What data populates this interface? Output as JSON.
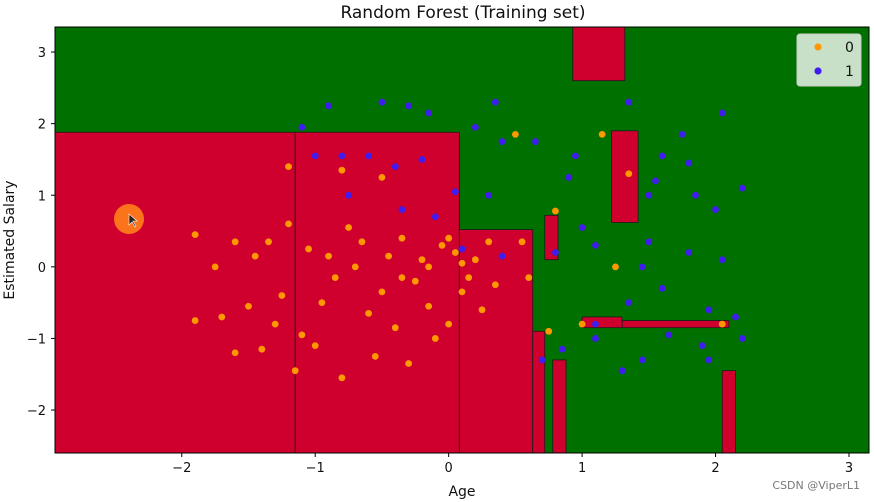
{
  "colors": {
    "region_0": "#d0002e",
    "region_1": "#007100",
    "point_0": "#ff9800",
    "point_1": "#3f1cf0",
    "cursor": "#ff7f1a"
  },
  "chart_data": {
    "type": "scatter",
    "title": "Random Forest (Training set)",
    "xlabel": "Age",
    "ylabel": "Estimated Salary",
    "xlim": [
      -2.95,
      3.15
    ],
    "ylim": [
      -2.6,
      3.35
    ],
    "xticks": [
      "−2",
      "−1",
      "0",
      "1",
      "2",
      "3"
    ],
    "xtick_values": [
      -2,
      -1,
      0,
      1,
      2,
      3
    ],
    "yticks": [
      "−2",
      "−1",
      "0",
      "1",
      "2",
      "3"
    ],
    "ytick_values": [
      -2,
      -1,
      0,
      1,
      2,
      3
    ],
    "grid": false,
    "legend": {
      "placement": "top-right",
      "entries": [
        "0",
        "1"
      ]
    },
    "decision_regions": [
      {
        "class": "0",
        "x": [
          -2.95,
          -1.15
        ],
        "y": [
          -2.6,
          1.88
        ]
      },
      {
        "class": "0",
        "x": [
          -1.15,
          0.08
        ],
        "y": [
          -2.6,
          1.88
        ]
      },
      {
        "class": "0",
        "x": [
          0.08,
          0.63
        ],
        "y": [
          -2.6,
          0.52
        ]
      },
      {
        "class": "0",
        "x": [
          0.63,
          0.72
        ],
        "y": [
          -2.6,
          -0.9
        ]
      },
      {
        "class": "0",
        "x": [
          0.78,
          0.88
        ],
        "y": [
          -2.6,
          -1.3
        ]
      },
      {
        "class": "0",
        "x": [
          0.93,
          1.32
        ],
        "y": [
          2.6,
          3.35
        ]
      },
      {
        "class": "0",
        "x": [
          1.22,
          1.42
        ],
        "y": [
          0.62,
          1.9
        ]
      },
      {
        "class": "0",
        "x": [
          1.0,
          1.3
        ],
        "y": [
          -0.7,
          -0.85
        ]
      },
      {
        "class": "0",
        "x": [
          1.3,
          2.1
        ],
        "y": [
          -0.75,
          -0.85
        ]
      },
      {
        "class": "0",
        "x": [
          2.05,
          2.15
        ],
        "y": [
          -2.6,
          -1.45
        ]
      },
      {
        "class": "0",
        "x": [
          0.72,
          0.82
        ],
        "y": [
          0.1,
          0.72
        ]
      }
    ],
    "series": [
      {
        "name": "0",
        "points": [
          [
            -1.9,
            0.45
          ],
          [
            -1.9,
            -0.75
          ],
          [
            -1.75,
            0.0
          ],
          [
            -1.7,
            -0.7
          ],
          [
            -1.6,
            -1.2
          ],
          [
            -1.6,
            0.35
          ],
          [
            -1.5,
            -0.55
          ],
          [
            -1.4,
            -1.15
          ],
          [
            -1.35,
            0.35
          ],
          [
            -1.25,
            -0.4
          ],
          [
            -1.2,
            0.6
          ],
          [
            -1.15,
            -1.45
          ],
          [
            -1.1,
            -0.95
          ],
          [
            -1.05,
            0.25
          ],
          [
            -1.0,
            -1.1
          ],
          [
            -0.95,
            -0.5
          ],
          [
            -0.85,
            -0.15
          ],
          [
            -0.8,
            -1.55
          ],
          [
            -0.75,
            0.55
          ],
          [
            -0.7,
            0.0
          ],
          [
            -0.65,
            0.35
          ],
          [
            -0.6,
            -0.65
          ],
          [
            -0.55,
            -1.25
          ],
          [
            -0.5,
            -0.35
          ],
          [
            -0.45,
            0.15
          ],
          [
            -0.4,
            -0.85
          ],
          [
            -0.35,
            0.4
          ],
          [
            -0.3,
            -1.35
          ],
          [
            -0.25,
            -0.2
          ],
          [
            -0.2,
            0.1
          ],
          [
            -0.15,
            -0.55
          ],
          [
            -0.1,
            -1.0
          ],
          [
            -0.05,
            0.3
          ],
          [
            0.0,
            -0.8
          ],
          [
            0.05,
            0.2
          ],
          [
            0.1,
            -0.35
          ],
          [
            0.15,
            -0.15
          ],
          [
            0.2,
            0.1
          ],
          [
            0.25,
            -0.6
          ],
          [
            0.3,
            0.35
          ],
          [
            0.35,
            -0.25
          ],
          [
            -1.45,
            0.15
          ],
          [
            -1.3,
            -0.8
          ],
          [
            -0.9,
            0.15
          ],
          [
            -0.35,
            -0.15
          ],
          [
            -0.15,
            0.0
          ],
          [
            0.0,
            0.4
          ],
          [
            0.1,
            0.05
          ],
          [
            -0.5,
            1.25
          ],
          [
            -0.8,
            1.35
          ],
          [
            -1.2,
            1.4
          ],
          [
            0.75,
            -0.9
          ],
          [
            0.55,
            0.35
          ],
          [
            1.0,
            -0.8
          ],
          [
            1.25,
            0.0
          ],
          [
            1.35,
            1.3
          ],
          [
            2.05,
            -0.8
          ],
          [
            0.8,
            0.78
          ],
          [
            0.5,
            1.85
          ],
          [
            1.15,
            1.85
          ],
          [
            0.6,
            -0.15
          ]
        ]
      },
      {
        "name": "1",
        "points": [
          [
            -0.9,
            2.25
          ],
          [
            -0.5,
            2.3
          ],
          [
            -0.3,
            2.25
          ],
          [
            0.35,
            2.3
          ],
          [
            1.35,
            2.3
          ],
          [
            2.05,
            2.15
          ],
          [
            1.75,
            1.85
          ],
          [
            0.2,
            1.95
          ],
          [
            -0.15,
            2.15
          ],
          [
            -1.1,
            1.95
          ],
          [
            -0.8,
            1.55
          ],
          [
            -0.6,
            1.55
          ],
          [
            -1.0,
            1.55
          ],
          [
            -0.4,
            1.4
          ],
          [
            -0.2,
            1.5
          ],
          [
            0.4,
            1.75
          ],
          [
            0.65,
            1.75
          ],
          [
            0.95,
            1.55
          ],
          [
            1.6,
            1.55
          ],
          [
            1.8,
            1.45
          ],
          [
            1.55,
            1.2
          ],
          [
            2.2,
            1.1
          ],
          [
            1.85,
            1.0
          ],
          [
            2.0,
            0.8
          ],
          [
            1.5,
            1.0
          ],
          [
            0.9,
            1.25
          ],
          [
            0.3,
            1.0
          ],
          [
            0.05,
            1.05
          ],
          [
            -0.35,
            0.8
          ],
          [
            -0.1,
            0.7
          ],
          [
            -0.75,
            1.0
          ],
          [
            1.0,
            0.55
          ],
          [
            1.1,
            0.3
          ],
          [
            1.5,
            0.35
          ],
          [
            1.8,
            0.2
          ],
          [
            2.05,
            0.1
          ],
          [
            1.45,
            0.0
          ],
          [
            0.8,
            0.2
          ],
          [
            0.4,
            0.15
          ],
          [
            0.1,
            0.25
          ],
          [
            1.6,
            -0.3
          ],
          [
            1.95,
            -0.6
          ],
          [
            2.15,
            -0.7
          ],
          [
            1.35,
            -0.5
          ],
          [
            1.1,
            -0.8
          ],
          [
            1.65,
            -0.95
          ],
          [
            1.9,
            -1.1
          ],
          [
            2.2,
            -1.0
          ],
          [
            0.85,
            -1.15
          ],
          [
            1.45,
            -1.3
          ],
          [
            1.3,
            -1.45
          ],
          [
            1.95,
            -1.3
          ],
          [
            1.1,
            -1.0
          ],
          [
            0.7,
            -1.3
          ]
        ]
      }
    ]
  },
  "watermark": "CSDN @ViperL1"
}
